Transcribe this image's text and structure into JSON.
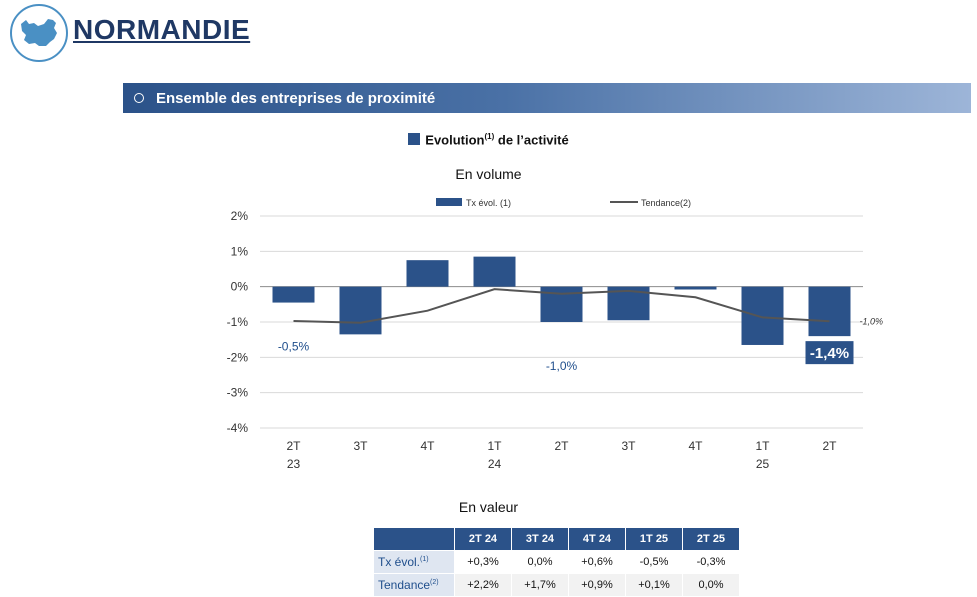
{
  "header": {
    "title": "NORMANDIE"
  },
  "section": {
    "title": "Ensemble des entreprises de proximité"
  },
  "chart_heading": {
    "text": "Evolution",
    "sup": "(1)",
    "suffix": " de l’activité"
  },
  "chart_data": {
    "type": "bar",
    "subtitle": "En volume",
    "categories": [
      [
        "2T",
        "23"
      ],
      [
        "3T",
        ""
      ],
      [
        "4T",
        ""
      ],
      [
        "1T",
        "24"
      ],
      [
        "2T",
        ""
      ],
      [
        "3T",
        ""
      ],
      [
        "4T",
        ""
      ],
      [
        "1T",
        "25"
      ],
      [
        "2T",
        ""
      ]
    ],
    "series": [
      {
        "name": "Tx évol. (1)",
        "type": "bar",
        "values": [
          -0.45,
          -1.35,
          0.75,
          0.85,
          -1.0,
          -0.95,
          -0.08,
          -1.65,
          -1.4
        ]
      },
      {
        "name": "Tendance(2)",
        "type": "line",
        "values": [
          -0.97,
          -1.02,
          -0.68,
          -0.07,
          -0.2,
          -0.12,
          -0.3,
          -0.87,
          -0.98
        ]
      }
    ],
    "ylim": [
      -4,
      2
    ],
    "yticks": [
      "2%",
      "1%",
      "0%",
      "-1%",
      "-2%",
      "-3%",
      "-4%"
    ],
    "data_labels": [
      {
        "index": 0,
        "text": "-0,5%"
      },
      {
        "index": 4,
        "text": "-1,0%"
      },
      {
        "index": 8,
        "text": "-1,4%"
      }
    ],
    "trend_end_label": "-1,0%",
    "colors": {
      "bar": "#2b5289",
      "line": "#555555",
      "grid": "#d9d9d9",
      "label": "#1f4e8c"
    }
  },
  "value_table": {
    "subtitle": "En valeur",
    "columns": [
      "2T 24",
      "3T 24",
      "4T 24",
      "1T 25",
      "2T 25"
    ],
    "rows": [
      {
        "label": "Tx évol.",
        "sup": "(1)",
        "values": [
          "+0,3%",
          "0,0%",
          "+0,6%",
          "-0,5%",
          "-0,3%"
        ]
      },
      {
        "label": "Tendance",
        "sup": "(2)",
        "values": [
          "+2,2%",
          "+1,7%",
          "+0,9%",
          "+0,1%",
          "0,0%"
        ]
      }
    ]
  }
}
